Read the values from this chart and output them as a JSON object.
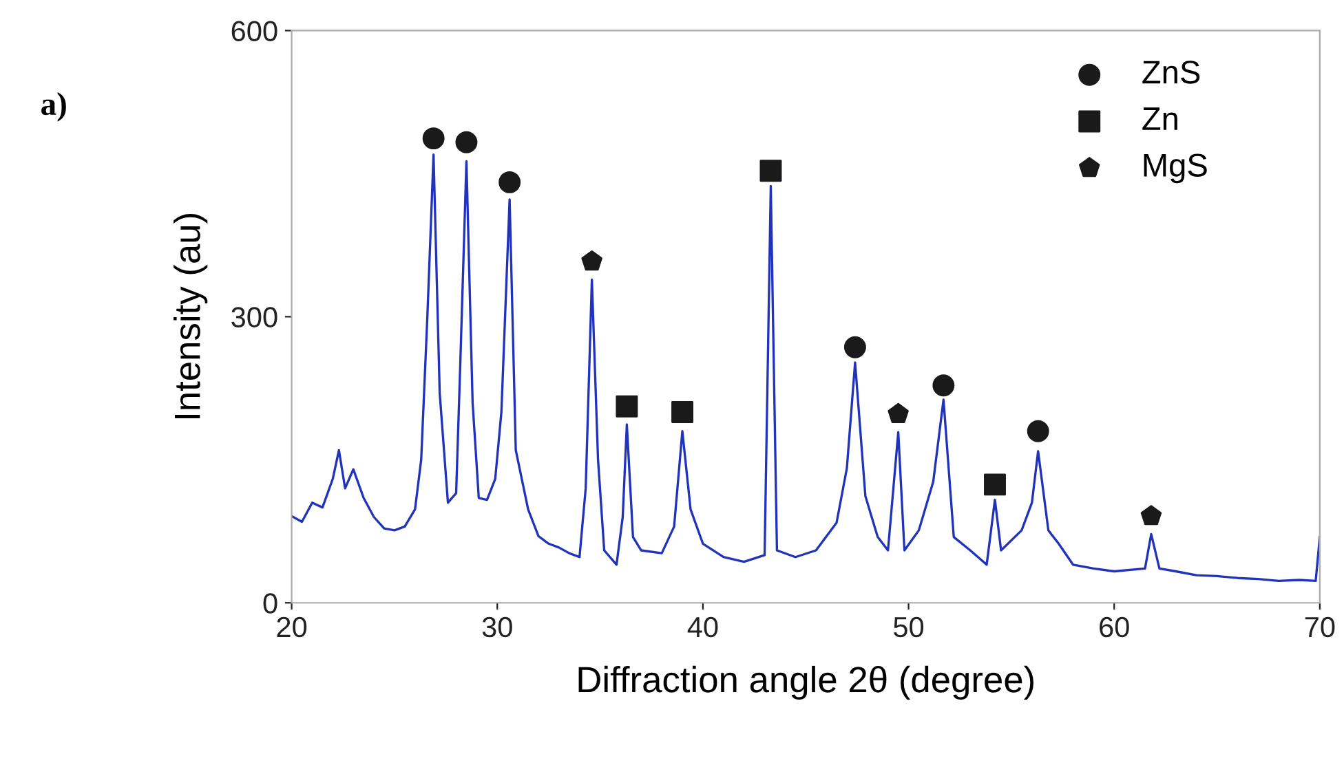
{
  "chart_data": {
    "type": "line",
    "xlabel": "Diffraction angle 2θ (degree)",
    "ylabel": "Intensity (au)",
    "annotations": [
      "a)"
    ],
    "xlim": [
      20,
      70
    ],
    "ylim": [
      0,
      600
    ],
    "xticks": [
      20,
      30,
      40,
      50,
      60,
      70
    ],
    "yticks": [
      0,
      300,
      600
    ],
    "grid": false,
    "legend": "top right",
    "series": [
      {
        "color": "#2233bb",
        "marker": "none",
        "line_style": "solid",
        "x": [
          20,
          20.5,
          21,
          21.5,
          22,
          22.3,
          22.6,
          23,
          23.5,
          24,
          24.5,
          25,
          25.5,
          26,
          26.3,
          26.6,
          26.9,
          27.2,
          27.6,
          28,
          28.2,
          28.5,
          28.8,
          29.1,
          29.5,
          29.9,
          30.2,
          30.6,
          30.9,
          31.5,
          32,
          32.5,
          33,
          33.5,
          34,
          34.3,
          34.6,
          34.9,
          35.2,
          35.8,
          36.1,
          36.3,
          36.6,
          37,
          38,
          38.6,
          39,
          39.4,
          40,
          41,
          42,
          43,
          43.3,
          43.6,
          44.5,
          45.5,
          46.5,
          47,
          47.4,
          47.9,
          48.5,
          49,
          49.5,
          49.8,
          50.5,
          51.2,
          51.7,
          52.2,
          53,
          53.8,
          54.2,
          54.5,
          55.5,
          56,
          56.3,
          56.8,
          57.3,
          58,
          59,
          60,
          61.5,
          61.8,
          62.2,
          63,
          64,
          65,
          66,
          67,
          68,
          69,
          69.8,
          70
        ],
        "values": [
          91,
          85,
          105,
          100,
          130,
          160,
          120,
          140,
          110,
          90,
          78,
          76,
          80,
          98,
          150,
          300,
          470,
          220,
          105,
          115,
          250,
          463,
          210,
          110,
          108,
          130,
          200,
          423,
          160,
          98,
          70,
          62,
          58,
          52,
          48,
          120,
          339,
          150,
          55,
          40,
          90,
          187,
          69,
          55,
          52,
          80,
          180,
          98,
          62,
          48,
          43,
          50,
          437,
          55,
          48,
          55,
          84,
          141,
          252,
          112,
          69,
          55,
          179,
          55,
          76,
          127,
          213,
          69,
          55,
          40,
          108,
          55,
          76,
          105,
          159,
          76,
          62,
          40,
          36,
          33,
          36,
          72,
          36,
          33,
          29,
          28,
          26,
          25,
          23,
          24,
          23,
          69
        ]
      },
      {
        "type": "scatter",
        "name": "ZnS",
        "color": "#1a1a1a",
        "marker": "circle",
        "x": [
          26.9,
          28.5,
          30.6,
          47.4,
          51.7,
          56.3
        ],
        "values": [
          487,
          483,
          441,
          268,
          228,
          180
        ]
      },
      {
        "type": "scatter",
        "name": "Zn",
        "color": "#1a1a1a",
        "marker": "square",
        "x": [
          36.3,
          39.0,
          43.3,
          54.2
        ],
        "values": [
          206,
          200,
          453,
          124
        ]
      },
      {
        "type": "scatter",
        "name": "MgS",
        "color": "#1a1a1a",
        "x": [
          34.6,
          49.5,
          61.8
        ],
        "values": [
          358,
          198,
          91
        ]
      }
    ]
  }
}
